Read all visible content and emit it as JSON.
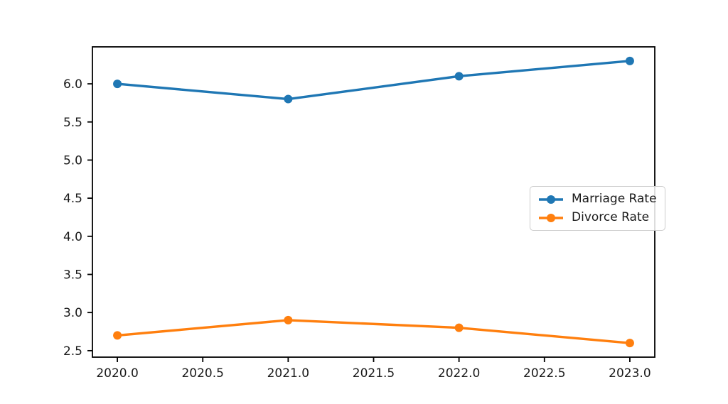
{
  "figure": {
    "background": "#ffffff",
    "axis_color": "#000000",
    "tick_text_color": "#1a1a1a"
  },
  "chart_data": {
    "type": "line",
    "title": "",
    "xlabel": "",
    "ylabel": "",
    "x": [
      2020,
      2021,
      2022,
      2023
    ],
    "series": [
      {
        "name": "Marriage Rate",
        "values": [
          6.0,
          5.8,
          6.1,
          6.3
        ],
        "color": "#1f77b4"
      },
      {
        "name": "Divorce Rate",
        "values": [
          2.7,
          2.9,
          2.8,
          2.6
        ],
        "color": "#ff7f0e"
      }
    ],
    "marker": "circle",
    "grid": false,
    "xlim": [
      2019.854,
      2023.146
    ],
    "ylim": [
      2.415,
      6.485
    ],
    "xticks": {
      "values": [
        2020.0,
        2020.5,
        2021.0,
        2021.5,
        2022.0,
        2022.5,
        2023.0
      ],
      "labels": [
        "2020.0",
        "2020.5",
        "2021.0",
        "2021.5",
        "2022.0",
        "2022.5",
        "2023.0"
      ]
    },
    "yticks": {
      "values": [
        2.5,
        3.0,
        3.5,
        4.0,
        4.5,
        5.0,
        5.5,
        6.0
      ],
      "labels": [
        "2.5",
        "3.0",
        "3.5",
        "4.0",
        "4.5",
        "5.0",
        "5.5",
        "6.0"
      ]
    },
    "legend": {
      "position": "center-right",
      "labels": [
        "Marriage Rate",
        "Divorce Rate"
      ]
    }
  }
}
